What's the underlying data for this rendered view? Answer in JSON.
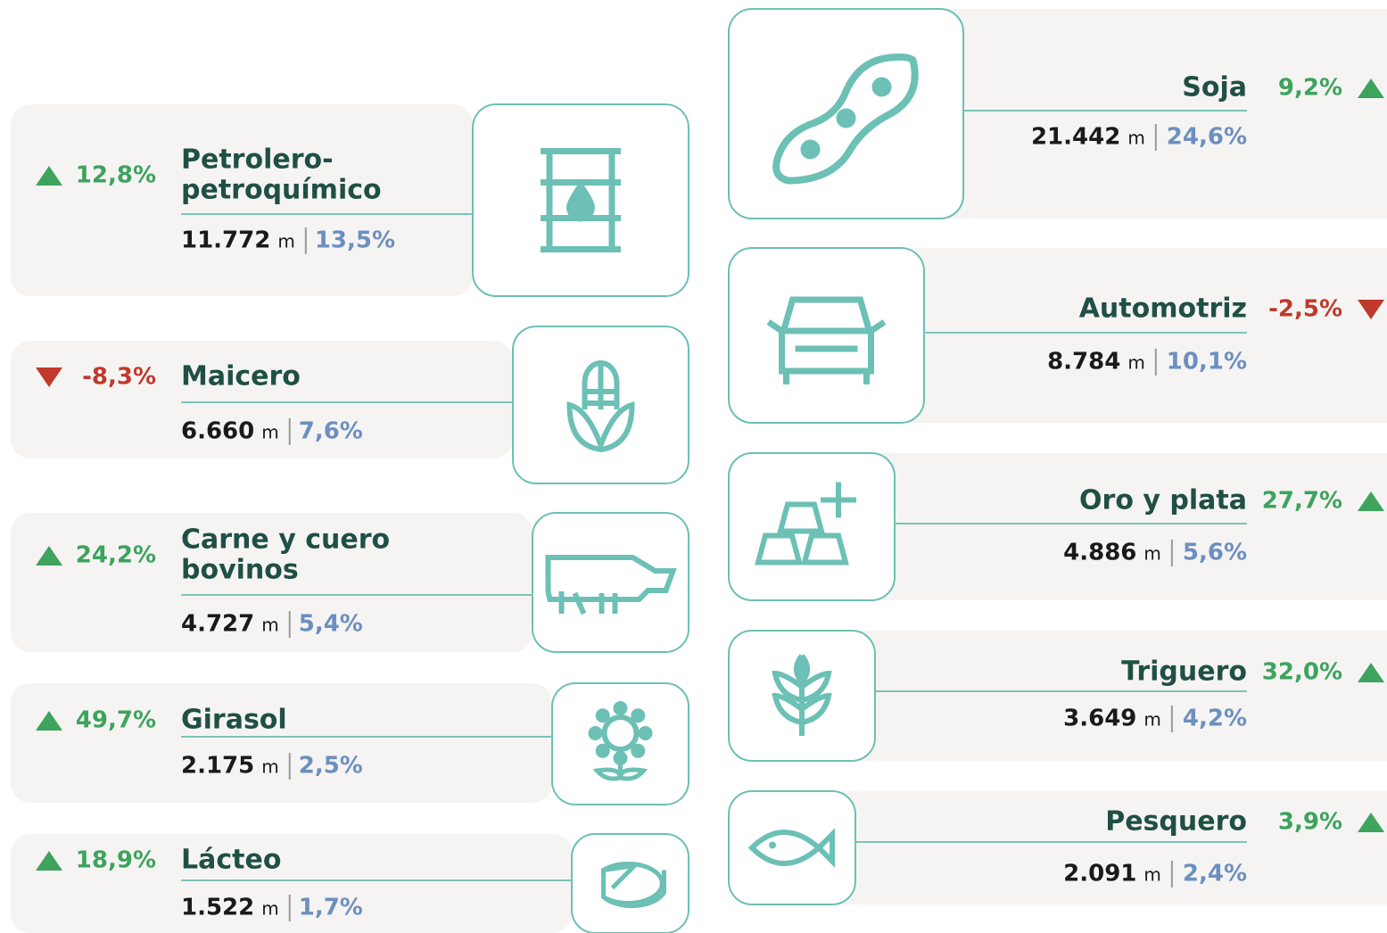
{
  "left": [
    {
      "name": [
        "Petrolero-",
        "petroquímico"
      ],
      "change": "12,8%",
      "value": "11.772",
      "unit": "m",
      "share": "13,5%"
    },
    {
      "name": [
        "Maicero"
      ],
      "change": "-8,3%",
      "value": "6.660",
      "unit": "m",
      "share": "7,6%"
    },
    {
      "name": [
        "Carne y cuero",
        "bovinos"
      ],
      "change": "24,2%",
      "value": "4.727",
      "unit": "m",
      "share": "5,4%"
    },
    {
      "name": [
        "Girasol"
      ],
      "change": "49,7%",
      "value": "2.175",
      "unit": "m",
      "share": "2,5%"
    },
    {
      "name": [
        "Lácteo"
      ],
      "change": "18,9%",
      "value": "1.522",
      "unit": "m",
      "share": "1,7%"
    }
  ],
  "right": [
    {
      "name": [
        "Soja"
      ],
      "change": "9,2%",
      "value": "21.442",
      "unit": "m",
      "share": "24,6%"
    },
    {
      "name": [
        "Automotriz"
      ],
      "change": "-2,5%",
      "value": "8.784",
      "unit": "m",
      "share": "10,1%"
    },
    {
      "name": [
        "Oro y plata"
      ],
      "change": "27,7%",
      "value": "4.886",
      "unit": "m",
      "share": "5,6%"
    },
    {
      "name": [
        "Triguero"
      ],
      "change": "32,0%",
      "value": "3.649",
      "unit": "m",
      "share": "4,2%"
    },
    {
      "name": [
        "Pesquero"
      ],
      "change": "3,9%",
      "value": "2.091",
      "unit": "m",
      "share": "2,4%"
    }
  ]
}
